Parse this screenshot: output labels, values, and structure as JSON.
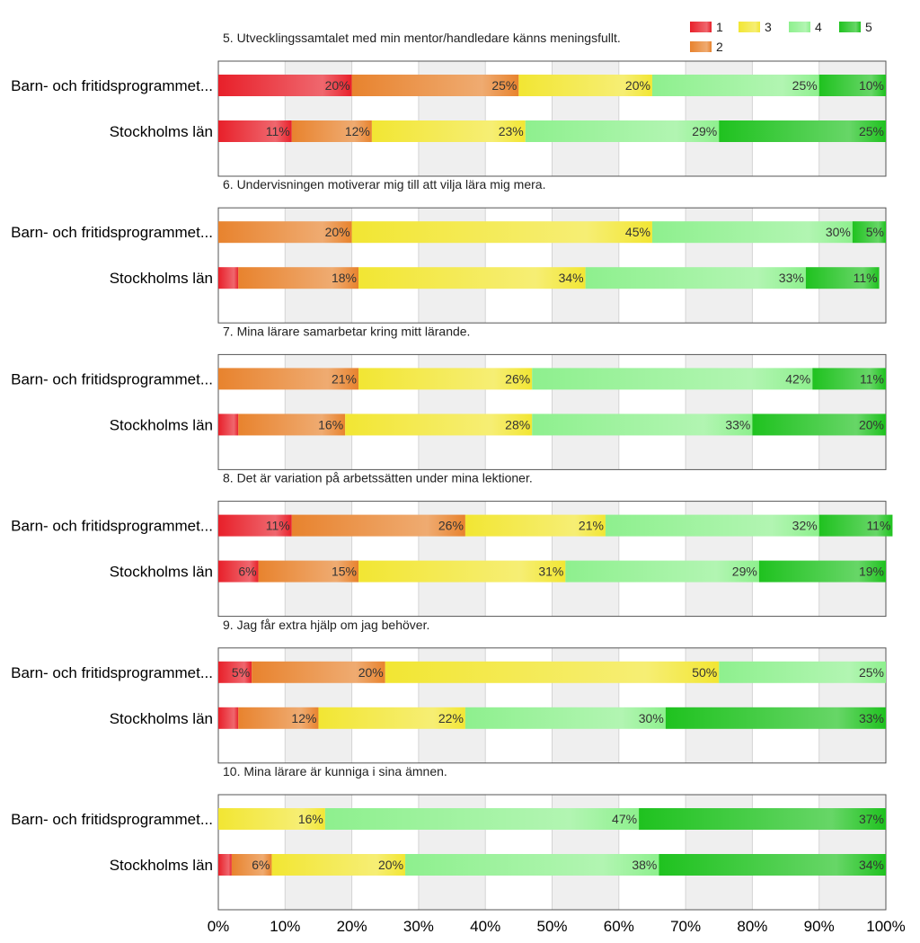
{
  "chart_data": {
    "type": "bar",
    "orientation": "horizontal",
    "stacked": true,
    "legend": {
      "placement": "top-right",
      "entries": [
        {
          "name": "1",
          "color": "#e8202a"
        },
        {
          "name": "2",
          "color": "#e8832e"
        },
        {
          "name": "3",
          "color": "#f2e633"
        },
        {
          "name": "4",
          "color": "#8ef08e"
        },
        {
          "name": "5",
          "color": "#1fc21f"
        }
      ]
    },
    "xaxis": {
      "ticks": [
        "0%",
        "10%",
        "20%",
        "30%",
        "40%",
        "50%",
        "60%",
        "70%",
        "80%",
        "90%",
        "100%"
      ],
      "range": [
        0,
        100
      ],
      "grid": true
    },
    "questions": [
      {
        "title": "5. Utvecklingssamtalet med min mentor/handledare känns meningsfullt.",
        "rows": [
          {
            "label": "Barn- och fritidsprogrammet...",
            "values": [
              20,
              25,
              20,
              25,
              10
            ],
            "labels": [
              "20%",
              "25%",
              "20%",
              "25%",
              "10%"
            ]
          },
          {
            "label": "Stockholms län",
            "values": [
              11,
              12,
              23,
              29,
              25
            ],
            "labels": [
              "11%",
              "12%",
              "23%",
              "29%",
              "25%"
            ]
          }
        ]
      },
      {
        "title": "6. Undervisningen motiverar mig till att vilja lära mig mera.",
        "rows": [
          {
            "label": "Barn- och fritidsprogrammet...",
            "values": [
              0,
              20,
              45,
              30,
              5
            ],
            "labels": [
              "",
              "20%",
              "45%",
              "30%",
              "5%"
            ]
          },
          {
            "label": "Stockholms län",
            "values": [
              3,
              18,
              34,
              33,
              11
            ],
            "labels": [
              "",
              "18%",
              "34%",
              "33%",
              "11%"
            ]
          }
        ]
      },
      {
        "title": "7. Mina lärare samarbetar kring mitt lärande.",
        "rows": [
          {
            "label": "Barn- och fritidsprogrammet...",
            "values": [
              0,
              21,
              26,
              42,
              11
            ],
            "labels": [
              "",
              "21%",
              "26%",
              "42%",
              "11%"
            ]
          },
          {
            "label": "Stockholms län",
            "values": [
              3,
              16,
              28,
              33,
              20
            ],
            "labels": [
              "",
              "16%",
              "28%",
              "33%",
              "20%"
            ]
          }
        ]
      },
      {
        "title": "8. Det är variation på arbetssätten under mina lektioner.",
        "rows": [
          {
            "label": "Barn- och fritidsprogrammet...",
            "values": [
              11,
              26,
              21,
              32,
              11
            ],
            "labels": [
              "11%",
              "26%",
              "21%",
              "32%",
              "11%"
            ]
          },
          {
            "label": "Stockholms län",
            "values": [
              6,
              15,
              31,
              29,
              19
            ],
            "labels": [
              "6%",
              "15%",
              "31%",
              "29%",
              "19%"
            ]
          }
        ]
      },
      {
        "title": "9. Jag får extra hjälp om jag behöver.",
        "rows": [
          {
            "label": "Barn- och fritidsprogrammet...",
            "values": [
              5,
              20,
              50,
              25,
              0
            ],
            "labels": [
              "5%",
              "20%",
              "50%",
              "25%",
              ""
            ]
          },
          {
            "label": "Stockholms län",
            "values": [
              3,
              12,
              22,
              30,
              33
            ],
            "labels": [
              "",
              "12%",
              "22%",
              "30%",
              "33%"
            ]
          }
        ]
      },
      {
        "title": "10. Mina lärare är kunniga i sina ämnen.",
        "rows": [
          {
            "label": "Barn- och fritidsprogrammet...",
            "values": [
              0,
              0,
              16,
              47,
              37
            ],
            "labels": [
              "",
              "",
              "16%",
              "47%",
              "37%"
            ]
          },
          {
            "label": "Stockholms län",
            "values": [
              2,
              6,
              20,
              38,
              34
            ],
            "labels": [
              "",
              "6%",
              "20%",
              "38%",
              "34%"
            ]
          }
        ]
      }
    ]
  }
}
